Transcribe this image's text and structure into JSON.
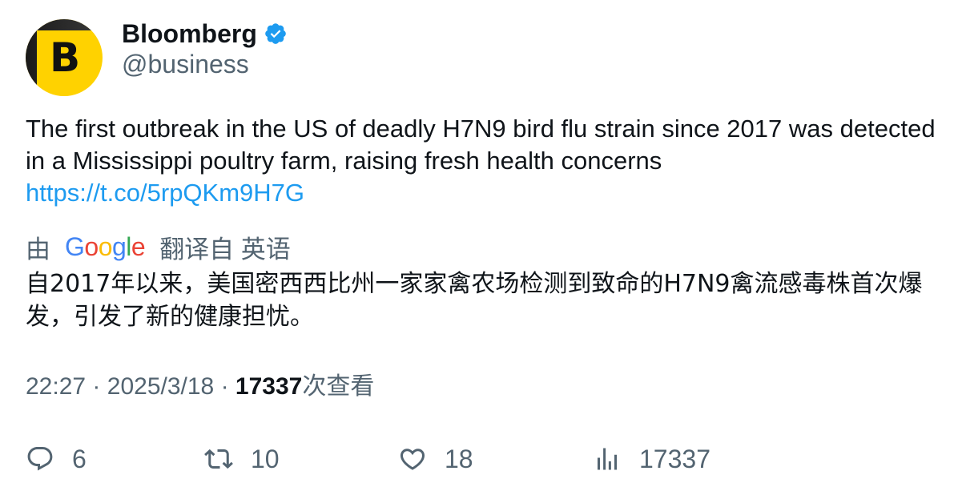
{
  "author": {
    "name": "Bloomberg",
    "handle": "@business",
    "avatar_letter": "B",
    "verified": true
  },
  "tweet": {
    "text": "The first outbreak in the US of deadly H7N9 bird flu strain since 2017 was detected in a Mississippi poultry farm, raising fresh health concerns",
    "link": "https://t.co/5rpQKm9H7G"
  },
  "translation": {
    "by_label": "由",
    "provider": "Google",
    "from_label": "翻译自 英语",
    "text": "自2017年以来，美国密西西比州一家家禽农场检测到致命的H7N9禽流感毒株首次爆发，引发了新的健康担忧。"
  },
  "meta": {
    "time": "22:27",
    "separator": "·",
    "date": "2025/3/18",
    "views": "17337",
    "views_label": "次查看"
  },
  "actions": {
    "replies": "6",
    "reposts": "10",
    "likes": "18",
    "views": "17337"
  },
  "colors": {
    "link": "#1d9bf0",
    "secondary_text": "#536471",
    "primary_text": "#0f1419",
    "verified": "#1d9bf0",
    "avatar_bg": "#ffd200",
    "google_blue": "#4285f4",
    "google_red": "#ea4335",
    "google_yellow": "#fbbc05",
    "google_green": "#34a853"
  },
  "icons": {
    "reply": "reply-icon",
    "repost": "repost-icon",
    "like": "heart-icon",
    "views": "bar-chart-icon",
    "verified": "verified-badge-icon"
  }
}
